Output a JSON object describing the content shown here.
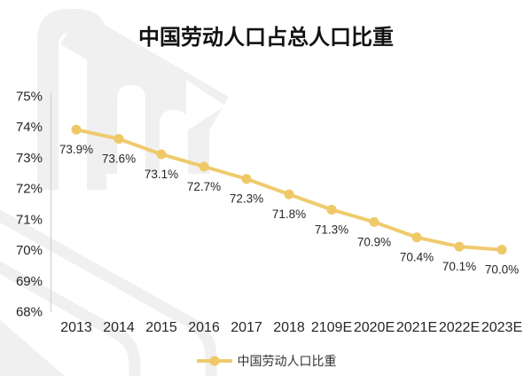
{
  "title": "中国劳动人口占总人口比重",
  "legend": {
    "label": "中国劳动人口比重"
  },
  "colors": {
    "line": "#EFCB6E",
    "marker": "#EFC968",
    "axis_line": "#D9D9D9",
    "tick_text": "#262626",
    "data_label_text": "#262626",
    "title_text": "#111111",
    "watermark": "#F0F0F1"
  },
  "chart_data": {
    "type": "line",
    "title": "中国劳动人口占总人口比重",
    "categories": [
      "2013",
      "2014",
      "2015",
      "2016",
      "2017",
      "2018",
      "2109E",
      "2020E",
      "2021E",
      "2022E",
      "2023E"
    ],
    "series": [
      {
        "name": "中国劳动人口比重",
        "values": [
          73.9,
          73.6,
          73.1,
          72.7,
          72.3,
          71.8,
          71.3,
          70.9,
          70.4,
          70.1,
          70.0
        ]
      }
    ],
    "point_labels": [
      "73.9%",
      "73.6%",
      "73.1%",
      "72.7%",
      "72.3%",
      "71.8%",
      "71.3%",
      "70.9%",
      "70.4%",
      "70.1%",
      "70.0%"
    ],
    "ylim": [
      68,
      75
    ],
    "yticks": [
      75,
      74,
      73,
      72,
      71,
      70,
      69,
      68
    ],
    "ytick_suffix": "%",
    "grid": false,
    "data_labels_visible": true,
    "legend_position": "bottom"
  }
}
